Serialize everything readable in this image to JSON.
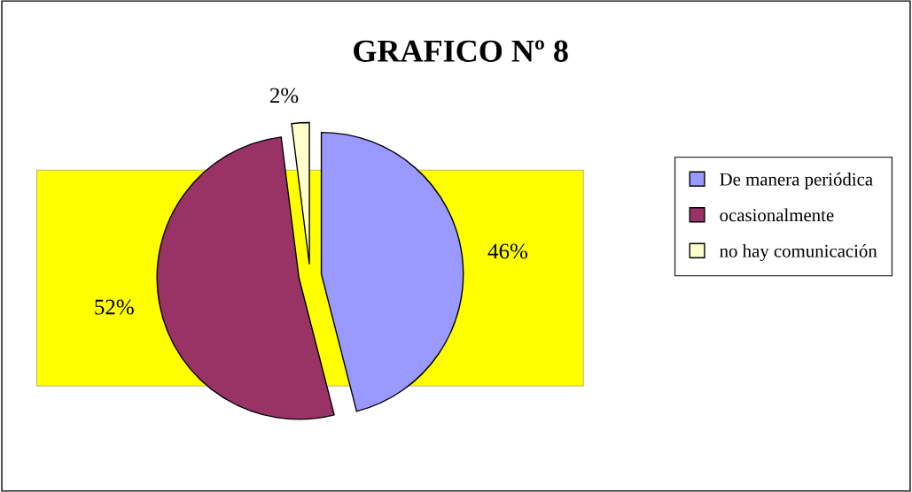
{
  "chart_data": {
    "type": "pie",
    "title": "GRAFICO Nº 8",
    "categories": [
      "De manera periódica",
      "ocasionalmente",
      "no hay comunicación"
    ],
    "values": [
      46,
      52,
      2
    ],
    "colors": [
      "#9999ff",
      "#993366",
      "#ffffcc"
    ],
    "value_labels": [
      "46%",
      "52%",
      "2%"
    ],
    "legend": "right"
  }
}
